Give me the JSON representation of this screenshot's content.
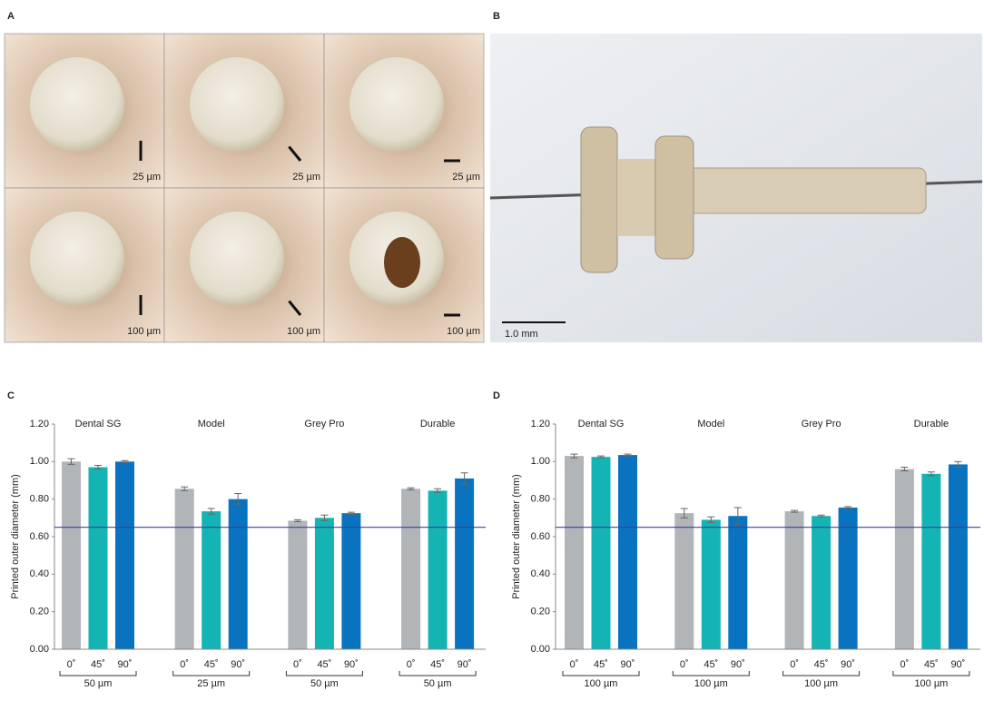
{
  "panels": {
    "A": {
      "label": "A",
      "scale_labels": [
        "25 µm",
        "25 µm",
        "25 µm",
        "100 µm",
        "100 µm",
        "100 µm"
      ]
    },
    "B": {
      "label": "B",
      "scale_label": "1.0 mm"
    }
  },
  "chart_data": [
    {
      "type": "bar",
      "panel_label": "C",
      "y_label": "Printed outer diameter (mm)",
      "categories": [
        "Dental SG",
        "Model",
        "Grey Pro",
        "Durable"
      ],
      "layer_labels": [
        "50 µm",
        "25 µm",
        "50 µm",
        "50 µm"
      ],
      "series": [
        {
          "name": "0˚",
          "color": "#b1b5b8",
          "values": [
            1.0,
            0.855,
            0.685,
            0.855
          ],
          "errors": [
            0.015,
            0.01,
            0.005,
            0.005
          ]
        },
        {
          "name": "45˚",
          "color": "#14b4b4",
          "values": [
            0.97,
            0.735,
            0.7,
            0.845
          ],
          "errors": [
            0.01,
            0.015,
            0.015,
            0.01
          ]
        },
        {
          "name": "90˚",
          "color": "#0a73bf",
          "values": [
            1.0,
            0.8,
            0.725,
            0.91
          ],
          "errors": [
            0.005,
            0.03,
            0.005,
            0.03
          ]
        }
      ],
      "reference_line": 0.65,
      "ylim": [
        0,
        1.2
      ],
      "yticks": [
        {
          "value": 0,
          "label": "0.00"
        },
        {
          "value": 0.2,
          "label": "0.20"
        },
        {
          "value": 0.4,
          "label": "0.40"
        },
        {
          "value": 0.6,
          "label": "0.60"
        },
        {
          "value": 0.8,
          "label": "0.80"
        },
        {
          "value": 1,
          "label": "1.00"
        },
        {
          "value": 1.2,
          "label": "1.20"
        }
      ]
    },
    {
      "type": "bar",
      "panel_label": "D",
      "y_label": "Printed outer diameter (mm)",
      "categories": [
        "Dental SG",
        "Model",
        "Grey Pro",
        "Durable"
      ],
      "layer_labels": [
        "100 µm",
        "100 µm",
        "100 µm",
        "100 µm"
      ],
      "series": [
        {
          "name": "0˚",
          "color": "#b1b5b8",
          "values": [
            1.03,
            0.725,
            0.735,
            0.96
          ],
          "errors": [
            0.01,
            0.025,
            0.005,
            0.01
          ]
        },
        {
          "name": "45˚",
          "color": "#14b4b4",
          "values": [
            1.025,
            0.69,
            0.71,
            0.935
          ],
          "errors": [
            0.005,
            0.015,
            0.005,
            0.01
          ]
        },
        {
          "name": "90˚",
          "color": "#0a73bf",
          "values": [
            1.035,
            0.71,
            0.755,
            0.985
          ],
          "errors": [
            0.005,
            0.045,
            0.005,
            0.015
          ]
        }
      ],
      "reference_line": 0.65,
      "ylim": [
        0,
        1.2
      ],
      "yticks": [
        {
          "value": 0,
          "label": "0.00"
        },
        {
          "value": 0.2,
          "label": "0.20"
        },
        {
          "value": 0.4,
          "label": "0.40"
        },
        {
          "value": 0.6,
          "label": "0.60"
        },
        {
          "value": 0.8,
          "label": "0.80"
        },
        {
          "value": 1,
          "label": "1.00"
        },
        {
          "value": 1.2,
          "label": "1.20"
        }
      ]
    }
  ]
}
